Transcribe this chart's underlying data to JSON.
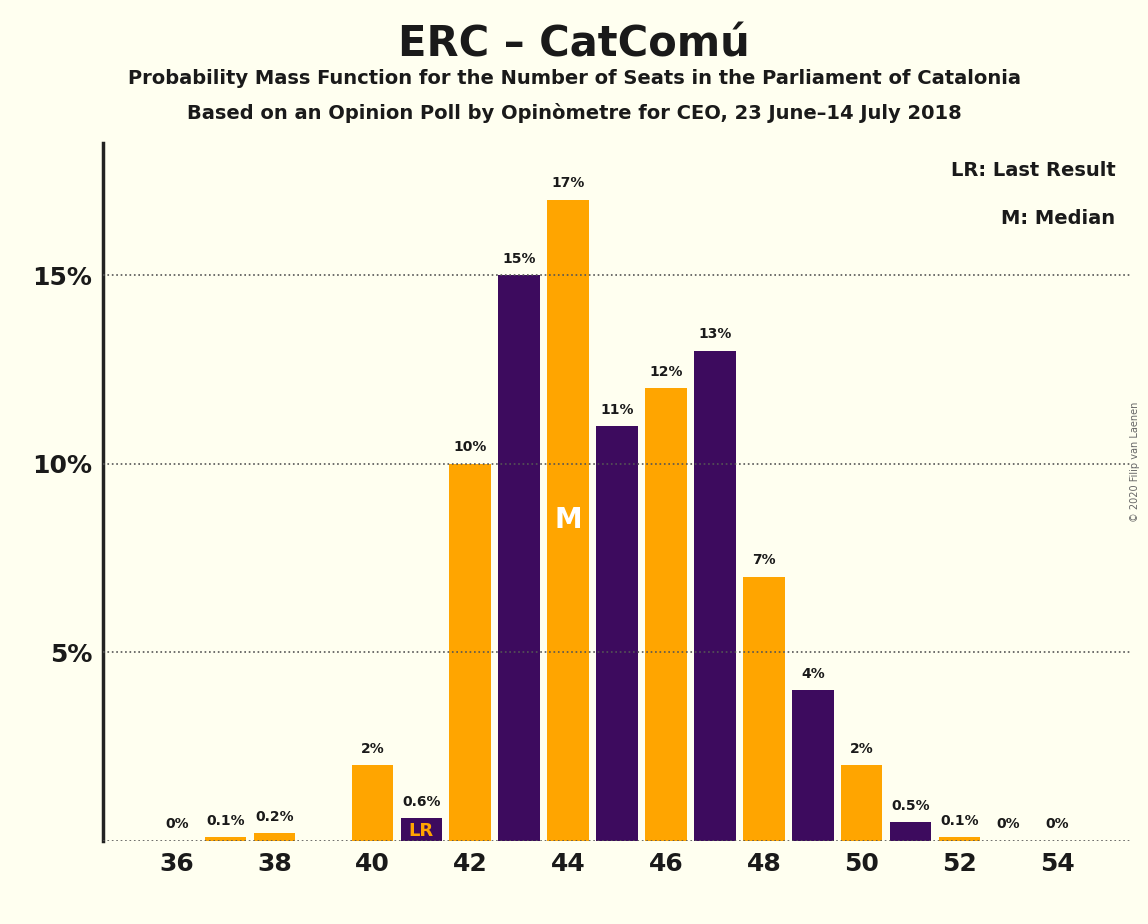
{
  "title": "ERC – CatComú",
  "subtitle1": "Probability Mass Function for the Number of Seats in the Parliament of Catalonia",
  "subtitle2": "Based on an Opinion Poll by Opinòmetre for CEO, 23 June–14 July 2018",
  "copyright": "© 2020 Filip van Laenen",
  "legend_lr": "LR: Last Result",
  "legend_m": "M: Median",
  "seats": [
    36,
    37,
    38,
    39,
    40,
    41,
    42,
    43,
    44,
    45,
    46,
    47,
    48,
    49,
    50,
    51,
    52,
    53,
    54
  ],
  "values": [
    0.0,
    0.1,
    0.2,
    0.0,
    2.0,
    0.6,
    10.0,
    15.0,
    17.0,
    11.0,
    12.0,
    13.0,
    7.0,
    4.0,
    2.0,
    0.5,
    0.1,
    0.0,
    0.0
  ],
  "bar_colors": [
    "#FFA500",
    "#FFA500",
    "#FFA500",
    "#3D0B5E",
    "#FFA500",
    "#3D0B5E",
    "#FFA500",
    "#3D0B5E",
    "#FFA500",
    "#3D0B5E",
    "#FFA500",
    "#3D0B5E",
    "#FFA500",
    "#3D0B5E",
    "#FFA500",
    "#3D0B5E",
    "#FFA500",
    "#FFA500",
    "#FFA500"
  ],
  "labels": [
    "0%",
    "0.1%",
    "0.2%",
    "",
    "2%",
    "0.6%",
    "10%",
    "15%",
    "17%",
    "11%",
    "12%",
    "13%",
    "7%",
    "4%",
    "2%",
    "0.5%",
    "0.1%",
    "0%",
    "0%"
  ],
  "lr_seat": 41,
  "lr_label": "LR",
  "median_seat": 44,
  "median_label": "M",
  "orange_color": "#FFA500",
  "purple_color": "#3D0B5E",
  "bg_color": "#FFFFF0",
  "text_color": "#1A1A1A",
  "bar_width": 0.85,
  "ylim_max": 18.5,
  "ytick_vals": [
    0,
    5,
    10,
    15
  ],
  "ytick_labels": [
    "",
    "5%",
    "10%",
    "15%"
  ],
  "xticks": [
    36,
    38,
    40,
    42,
    44,
    46,
    48,
    50,
    52,
    54
  ],
  "xlim": [
    34.5,
    55.5
  ]
}
